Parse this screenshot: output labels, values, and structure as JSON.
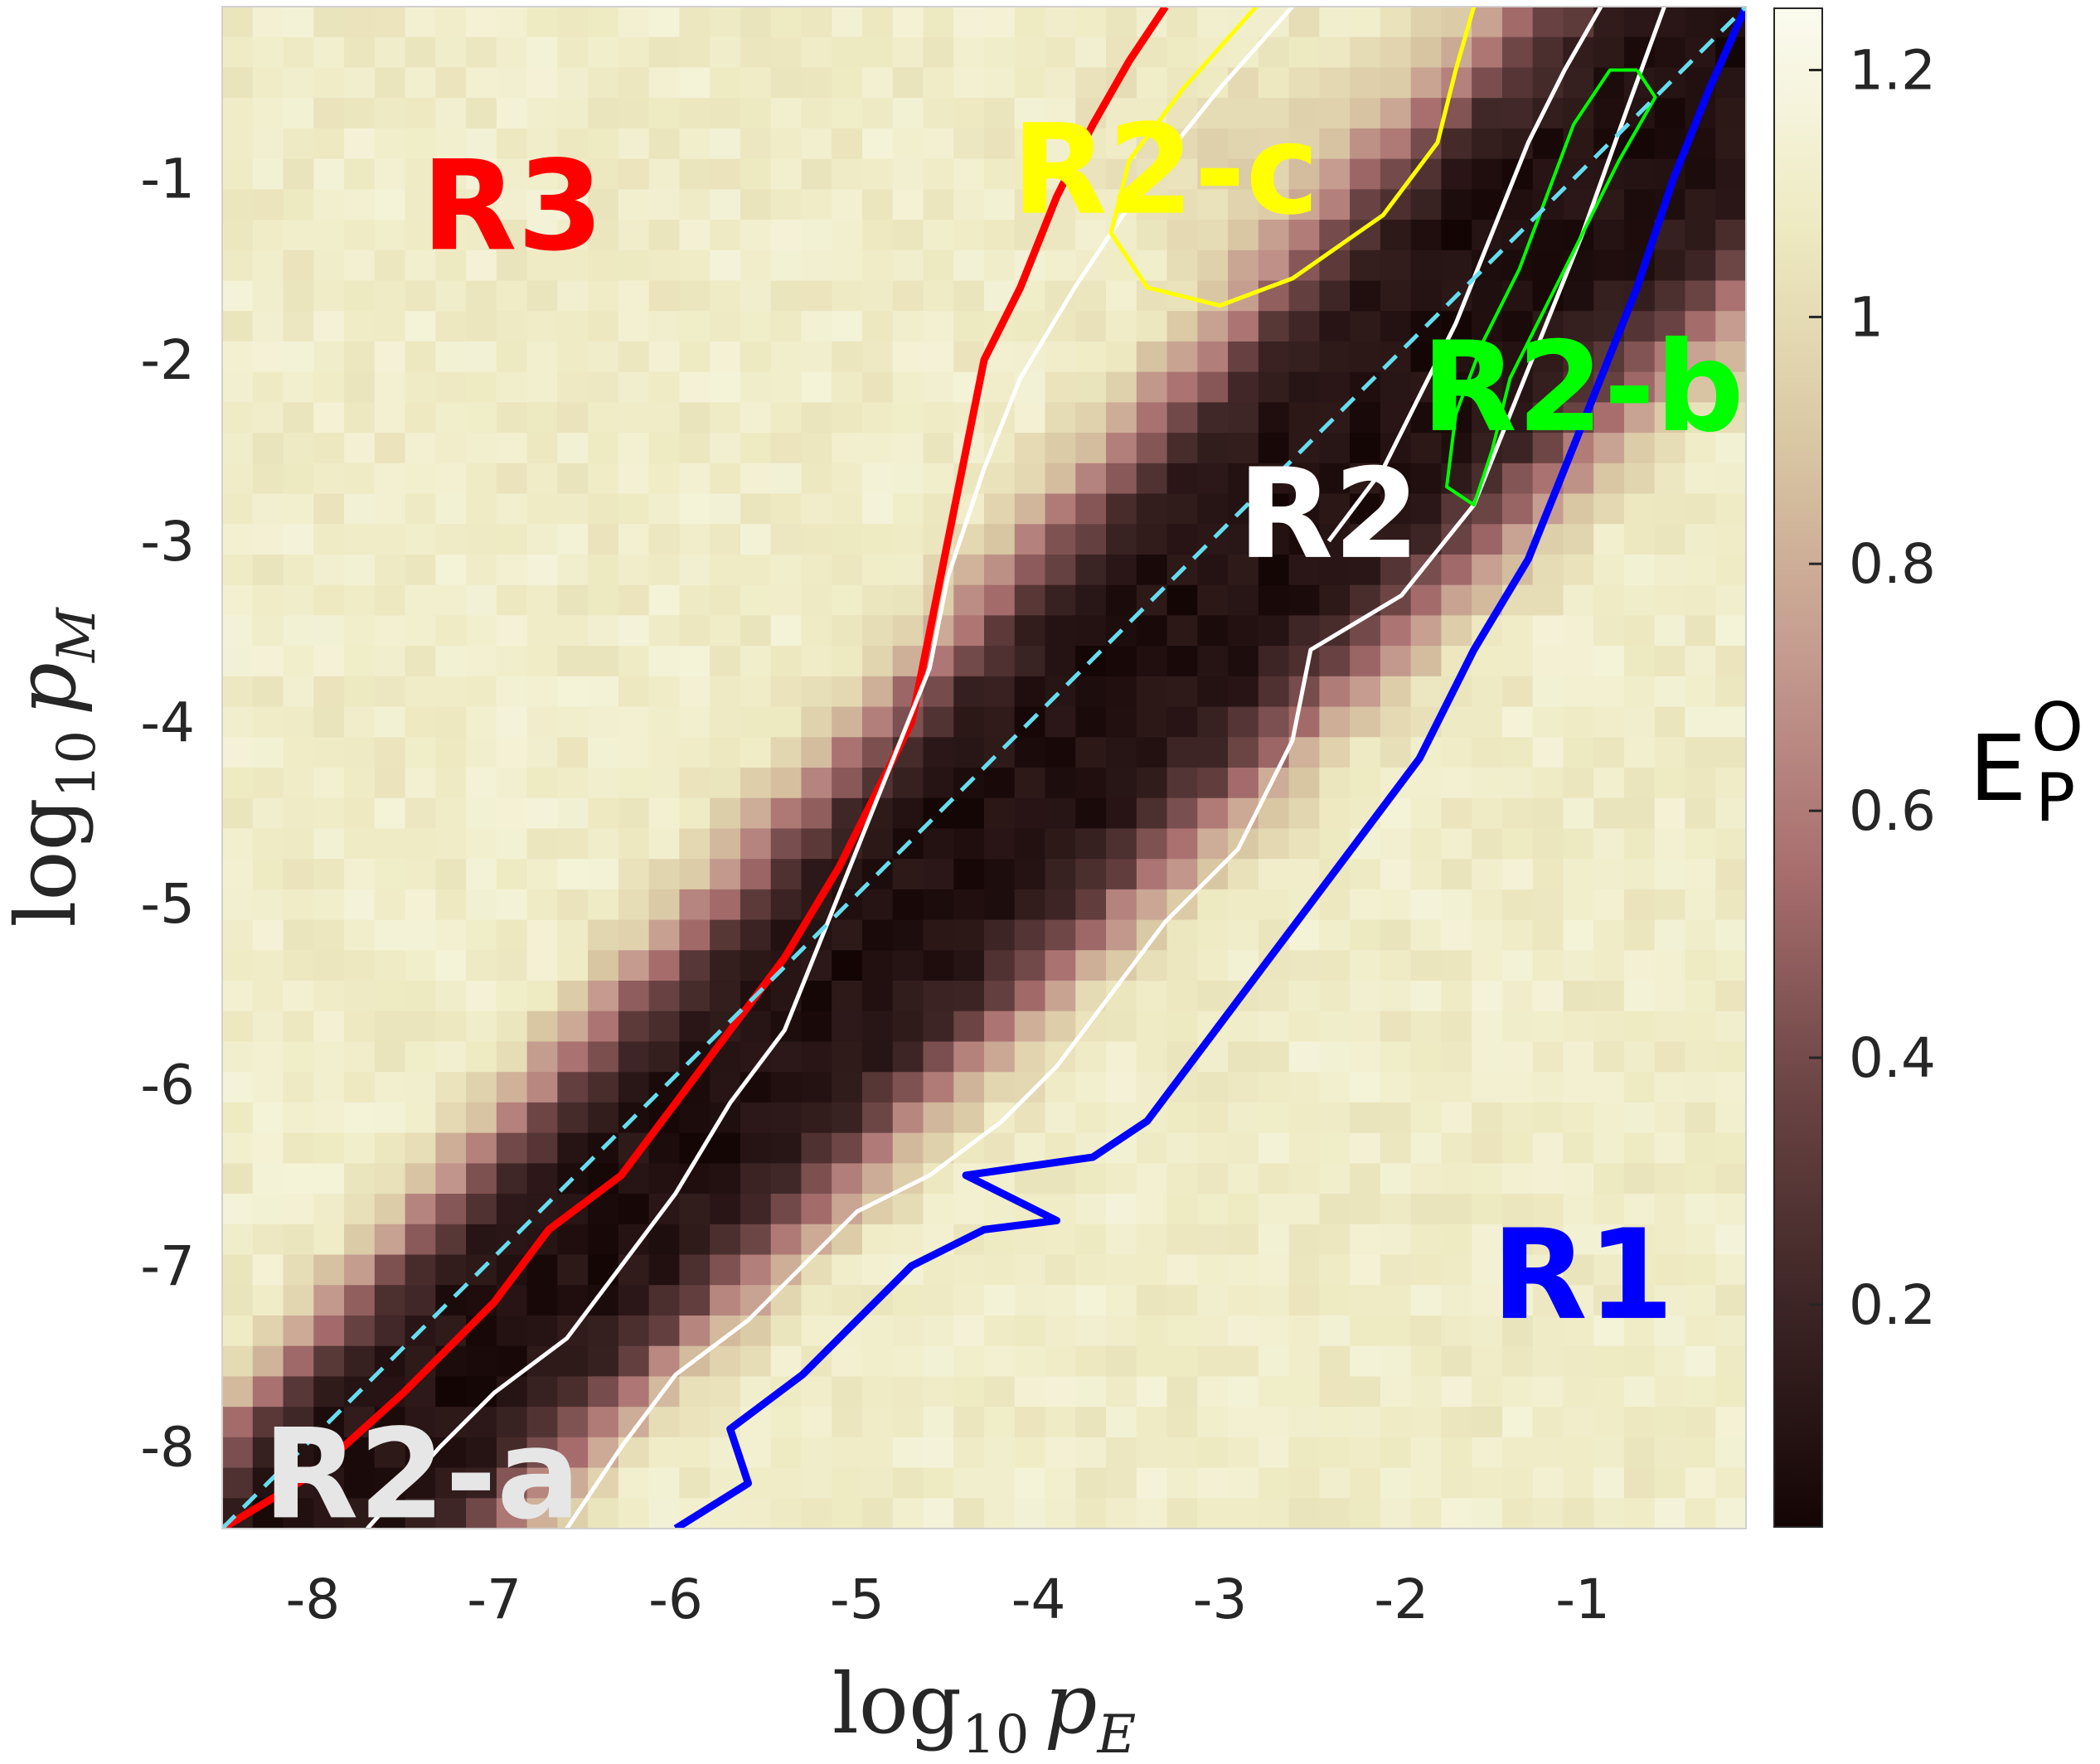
{
  "chart_data": {
    "type": "heatmap",
    "x_axis": {
      "label_prefix": "log",
      "label_subscript": "10",
      "label_variable": "p",
      "label_variable_subscript": "E",
      "ticks": [
        -8,
        -7,
        -6,
        -5,
        -4,
        -3,
        -2,
        -1
      ],
      "tick_labels": [
        "-8",
        "-7",
        "-6",
        "-5",
        "-4",
        "-3",
        "-2",
        "-1"
      ],
      "range": [
        -8.5,
        -0.1
      ]
    },
    "y_axis": {
      "label_prefix": "log",
      "label_subscript": "10",
      "label_variable": "p",
      "label_variable_subscript": "M",
      "ticks": [
        -8,
        -7,
        -6,
        -5,
        -4,
        -3,
        -2,
        -1
      ],
      "tick_labels": [
        "-8",
        "-7",
        "-6",
        "-5",
        "-4",
        "-3",
        "-2",
        "-1"
      ],
      "range": [
        -8.45,
        -0.05
      ]
    },
    "colorbar": {
      "label_main": "E",
      "label_sup": "O",
      "label_sub": "P",
      "ticks": [
        0.2,
        0.4,
        0.6,
        0.8,
        1,
        1.2
      ],
      "tick_labels": [
        "0.2",
        "0.4",
        "0.6",
        "0.8",
        "1",
        "1.2"
      ],
      "range": [
        0.02,
        1.25
      ],
      "colormap": [
        "#140505",
        "#3c2424",
        "#6b4444",
        "#a76d6d",
        "#c49a8e",
        "#d9c7a3",
        "#eeeac2",
        "#fbfbef"
      ]
    },
    "grid_resolution": [
      50,
      50
    ],
    "region_labels": [
      {
        "text": "R3",
        "color": "#ff0000",
        "x": -6.9,
        "y": -1.2
      },
      {
        "text": "R2-c",
        "color": "#ffff00",
        "x": -3.3,
        "y": -1.0
      },
      {
        "text": "R2",
        "color": "#ffffff",
        "x": -2.4,
        "y": -2.9
      },
      {
        "text": "R2-b",
        "color": "#00ff00",
        "x": -1.0,
        "y": -2.2
      },
      {
        "text": "R1",
        "color": "#0000ff",
        "x": -1.0,
        "y": -7.1
      },
      {
        "text": "R2-a",
        "color": "#e6e6e6",
        "x": -7.4,
        "y": -8.2
      }
    ],
    "contours": [
      {
        "name": "R3 boundary",
        "color": "#ff0000",
        "width": 9,
        "points": [
          [
            -8.5,
            -8.45
          ],
          [
            -8.0,
            -8.15
          ],
          [
            -7.5,
            -7.7
          ],
          [
            -7.0,
            -7.2
          ],
          [
            -6.7,
            -6.8
          ],
          [
            -6.3,
            -6.5
          ],
          [
            -6.0,
            -6.1
          ],
          [
            -5.7,
            -5.7
          ],
          [
            -5.4,
            -5.3
          ],
          [
            -5.1,
            -4.8
          ],
          [
            -4.9,
            -4.4
          ],
          [
            -4.7,
            -4.0
          ],
          [
            -4.6,
            -3.5
          ],
          [
            -4.5,
            -3.0
          ],
          [
            -4.4,
            -2.5
          ],
          [
            -4.3,
            -2.0
          ],
          [
            -4.1,
            -1.6
          ],
          [
            -3.9,
            -1.1
          ],
          [
            -3.7,
            -0.7
          ],
          [
            -3.5,
            -0.35
          ],
          [
            -3.3,
            -0.05
          ]
        ]
      },
      {
        "name": "R2 upper boundary",
        "color": "#ffffff",
        "width": 5,
        "points": [
          [
            -7.7,
            -8.45
          ],
          [
            -7.3,
            -8.0
          ],
          [
            -7.0,
            -7.7
          ],
          [
            -6.6,
            -7.4
          ],
          [
            -6.3,
            -7.0
          ],
          [
            -6.0,
            -6.6
          ],
          [
            -5.7,
            -6.1
          ],
          [
            -5.4,
            -5.7
          ],
          [
            -5.2,
            -5.2
          ],
          [
            -5.0,
            -4.7
          ],
          [
            -4.8,
            -4.2
          ],
          [
            -4.6,
            -3.7
          ],
          [
            -4.5,
            -3.2
          ],
          [
            -4.3,
            -2.6
          ],
          [
            -4.1,
            -2.1
          ],
          [
            -3.8,
            -1.6
          ],
          [
            -3.4,
            -1.0
          ],
          [
            -3.0,
            -0.5
          ],
          [
            -2.6,
            -0.05
          ]
        ]
      },
      {
        "name": "R2 inner boundary",
        "color": "#ffffff",
        "width": 5,
        "points": [
          [
            -6.6,
            -8.45
          ],
          [
            -6.3,
            -8.0
          ],
          [
            -6.0,
            -7.6
          ],
          [
            -5.6,
            -7.3
          ],
          [
            -5.3,
            -7.0
          ],
          [
            -5.0,
            -6.7
          ],
          [
            -4.6,
            -6.5
          ],
          [
            -4.2,
            -6.2
          ],
          [
            -3.9,
            -5.9
          ],
          [
            -3.6,
            -5.5
          ],
          [
            -3.3,
            -5.1
          ],
          [
            -2.9,
            -4.7
          ],
          [
            -2.6,
            -4.1
          ],
          [
            -2.5,
            -3.6
          ],
          [
            -2.0,
            -3.3
          ],
          [
            -1.6,
            -2.8
          ],
          [
            -1.4,
            -2.3
          ],
          [
            -1.2,
            -1.8
          ],
          [
            -1.0,
            -1.3
          ],
          [
            -0.75,
            -0.6
          ],
          [
            -0.55,
            -0.05
          ]
        ]
      },
      {
        "name": "R2 notch",
        "color": "#ffffff",
        "width": 5,
        "points": [
          [
            -2.4,
            -3.0
          ],
          [
            -2.1,
            -2.6
          ],
          [
            -1.9,
            -2.2
          ],
          [
            -1.7,
            -1.8
          ],
          [
            -1.5,
            -1.3
          ],
          [
            -1.3,
            -0.8
          ],
          [
            -1.1,
            -0.4
          ],
          [
            -0.9,
            -0.05
          ]
        ]
      },
      {
        "name": "R2-c boundary",
        "color": "#ffff00",
        "width": 5,
        "points": [
          [
            -2.8,
            -0.05
          ],
          [
            -3.2,
            -0.5
          ],
          [
            -3.5,
            -0.9
          ],
          [
            -3.6,
            -1.3
          ],
          [
            -3.4,
            -1.6
          ],
          [
            -3.0,
            -1.7
          ],
          [
            -2.6,
            -1.55
          ],
          [
            -2.1,
            -1.2
          ],
          [
            -1.8,
            -0.8
          ],
          [
            -1.7,
            -0.4
          ],
          [
            -1.6,
            -0.05
          ]
        ]
      },
      {
        "name": "R2-b boundary",
        "color": "#00ff00",
        "width": 4,
        "points": [
          [
            -0.7,
            -0.4
          ],
          [
            -0.6,
            -0.55
          ],
          [
            -0.8,
            -0.9
          ],
          [
            -1.0,
            -1.3
          ],
          [
            -1.2,
            -1.7
          ],
          [
            -1.4,
            -2.1
          ],
          [
            -1.5,
            -2.5
          ],
          [
            -1.6,
            -2.8
          ],
          [
            -1.75,
            -2.7
          ],
          [
            -1.7,
            -2.3
          ],
          [
            -1.55,
            -1.9
          ],
          [
            -1.35,
            -1.5
          ],
          [
            -1.2,
            -1.1
          ],
          [
            -1.05,
            -0.7
          ],
          [
            -0.85,
            -0.4
          ],
          [
            -0.7,
            -0.4
          ]
        ]
      },
      {
        "name": "R1 boundary",
        "color": "#0000ff",
        "width": 9,
        "points": [
          [
            -6.0,
            -8.45
          ],
          [
            -5.6,
            -8.2
          ],
          [
            -5.7,
            -7.9
          ],
          [
            -5.3,
            -7.6
          ],
          [
            -5.0,
            -7.3
          ],
          [
            -4.7,
            -7.0
          ],
          [
            -4.3,
            -6.8
          ],
          [
            -3.9,
            -6.75
          ],
          [
            -4.4,
            -6.5
          ],
          [
            -3.7,
            -6.4
          ],
          [
            -3.4,
            -6.2
          ],
          [
            -3.1,
            -5.8
          ],
          [
            -2.8,
            -5.4
          ],
          [
            -2.5,
            -5.0
          ],
          [
            -2.2,
            -4.6
          ],
          [
            -1.9,
            -4.2
          ],
          [
            -1.6,
            -3.6
          ],
          [
            -1.3,
            -3.1
          ],
          [
            -1.1,
            -2.6
          ],
          [
            -0.9,
            -2.1
          ],
          [
            -0.7,
            -1.6
          ],
          [
            -0.5,
            -1.0
          ],
          [
            -0.3,
            -0.5
          ],
          [
            -0.1,
            -0.05
          ]
        ]
      },
      {
        "name": "diagonal",
        "color": "#66ddee",
        "width": 5,
        "dashed": true,
        "points": [
          [
            -8.5,
            -8.45
          ],
          [
            -0.1,
            -0.05
          ]
        ]
      }
    ]
  }
}
